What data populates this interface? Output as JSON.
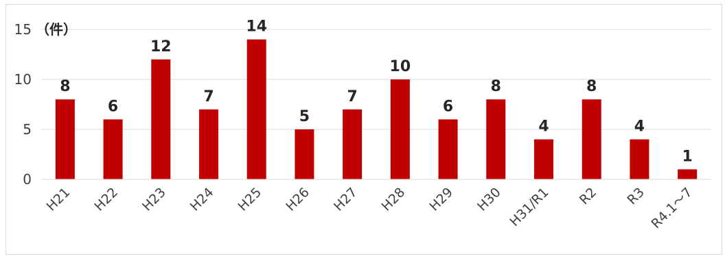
{
  "chart_data": {
    "type": "bar",
    "unit_label": "（件）",
    "categories": [
      "H21",
      "H22",
      "H23",
      "H24",
      "H25",
      "H26",
      "H27",
      "H28",
      "H29",
      "H30",
      "H31/R1",
      "R2",
      "R3",
      "R4.1～7"
    ],
    "values": [
      8,
      6,
      12,
      7,
      14,
      5,
      7,
      10,
      6,
      8,
      4,
      8,
      4,
      1
    ],
    "ylim": [
      0,
      15
    ],
    "yticks": [
      "0",
      "5",
      "10",
      "15"
    ],
    "grid": true,
    "legend": "none",
    "bar_color": "#c00000",
    "grid_color": "#d9d9d9"
  }
}
